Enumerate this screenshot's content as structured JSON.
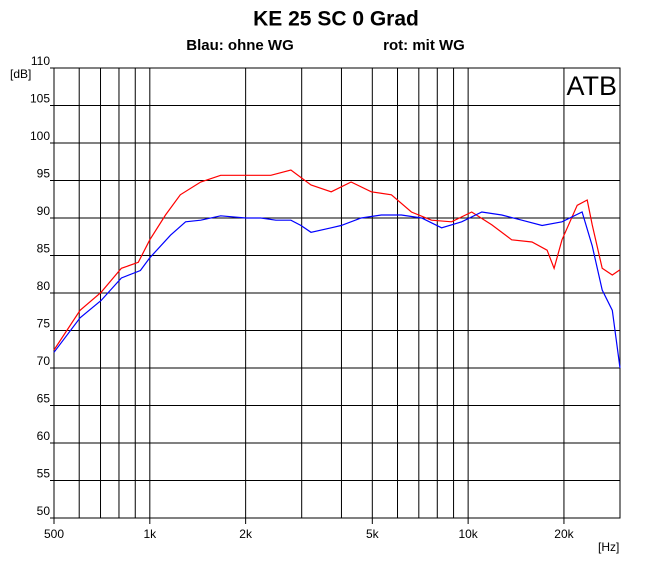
{
  "chart_data": {
    "type": "line",
    "title": "KE 25 SC   0 Grad",
    "annotation": "ATB",
    "y_label": "[dB]",
    "x_label": "[Hz]",
    "xlog": true,
    "grid": true,
    "xlim": [
      500,
      30000
    ],
    "ylim": [
      50,
      110
    ],
    "xticks": [
      500,
      {
        "value": 1000,
        "label": "1k"
      },
      {
        "value": 2000,
        "label": "2k"
      },
      {
        "value": 5000,
        "label": "5k"
      },
      {
        "value": 10000,
        "label": "10k"
      },
      {
        "value": 20000,
        "label": "20k"
      }
    ],
    "xgrid": [
      600,
      700,
      800,
      900,
      3000,
      4000,
      6000,
      7000,
      8000,
      9000
    ],
    "yticks": [
      50,
      55,
      60,
      65,
      70,
      75,
      80,
      85,
      90,
      95,
      100,
      105,
      110
    ],
    "series": [
      {
        "name": "rot: mit WG",
        "color": "#ff0000",
        "x": [
          500,
          604,
          703,
          814,
          920,
          1000,
          1120,
          1247,
          1445,
          1670,
          2000,
          2400,
          2775,
          3210,
          3715,
          4290,
          4965,
          5740,
          6635,
          7670,
          8875,
          10260,
          11860,
          13710,
          15870,
          17700,
          18620,
          19720,
          22010,
          23660,
          24540,
          26380,
          28370,
          30000
        ],
        "values": [
          72.4,
          77.7,
          80.1,
          83.3,
          84.1,
          87.1,
          90.4,
          93.1,
          94.8,
          95.7,
          95.7,
          95.7,
          96.4,
          94.4,
          93.5,
          94.8,
          93.5,
          93.1,
          90.8,
          89.7,
          89.5,
          90.8,
          89.1,
          87.1,
          86.8,
          85.7,
          83.3,
          87.1,
          91.7,
          92.4,
          89.1,
          83.3,
          82.4,
          83.1
        ]
      },
      {
        "name": "Blau: ohne WG",
        "color": "#0000ff",
        "x": [
          500,
          604,
          703,
          814,
          934,
          1000,
          1161,
          1295,
          1445,
          1670,
          2000,
          2233,
          2490,
          2775,
          2985,
          3210,
          3715,
          3990,
          4615,
          5335,
          6170,
          7140,
          8255,
          9545,
          11040,
          12760,
          14760,
          17070,
          19720,
          22800,
          24540,
          26380,
          28370,
          30000
        ],
        "values": [
          72.1,
          76.7,
          79,
          82,
          83,
          84.7,
          87.7,
          89.5,
          89.7,
          90.3,
          90,
          90,
          89.7,
          89.7,
          89,
          88.1,
          88.7,
          89,
          90,
          90.4,
          90.4,
          90,
          88.7,
          89.5,
          90.8,
          90.4,
          89.7,
          89,
          89.5,
          90.8,
          86.3,
          80.4,
          77.7,
          70
        ]
      }
    ]
  }
}
